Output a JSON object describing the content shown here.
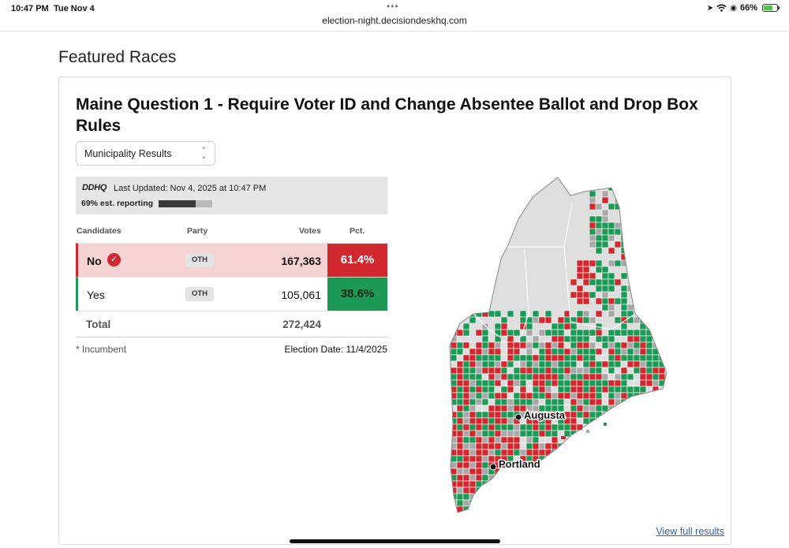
{
  "status_bar": {
    "time": "10:47 PM",
    "date": "Tue Nov 4",
    "url": "election-night.decisiondeskhq.com",
    "battery": "66%",
    "battery_level": 0.66,
    "dots": "•••"
  },
  "section": {
    "title": "Featured Races"
  },
  "race": {
    "title": "Maine Question 1 - Require Voter ID and Change Absentee Ballot and Drop Box Rules",
    "view_select": {
      "selected": "Municipality Results"
    },
    "source_logo": "DDHQ",
    "last_updated": "Last Updated: Nov 4, 2025 at 10:47 PM",
    "reporting_label": "69% est. reporting",
    "reporting_fraction": 0.69,
    "columns": {
      "candidates": "Candidates",
      "party": "Party",
      "votes": "Votes",
      "pct": "Pct."
    },
    "results": [
      {
        "name": "No",
        "party": "OTH",
        "votes": "167,363",
        "pct": "61.4%",
        "winner": true
      },
      {
        "name": "Yes",
        "party": "OTH",
        "votes": "105,061",
        "pct": "38.6%",
        "winner": false
      }
    ],
    "total_label": "Total",
    "total_votes": "272,424",
    "incumbent_note": "* Incumbent",
    "election_date": "Election Date: 11/4/2025",
    "map": {
      "cities": [
        "Augusta",
        "Portland"
      ],
      "colors": {
        "no": "#d0282e",
        "yes": "#1c9a55",
        "pending": "#a8a8a8",
        "unreported": "#dedede"
      }
    },
    "view_full_link": "View full results"
  },
  "colors": {
    "winner_red": "#d0282e",
    "yes_green": "#1c9a55",
    "link_blue": "#2a62b8"
  }
}
